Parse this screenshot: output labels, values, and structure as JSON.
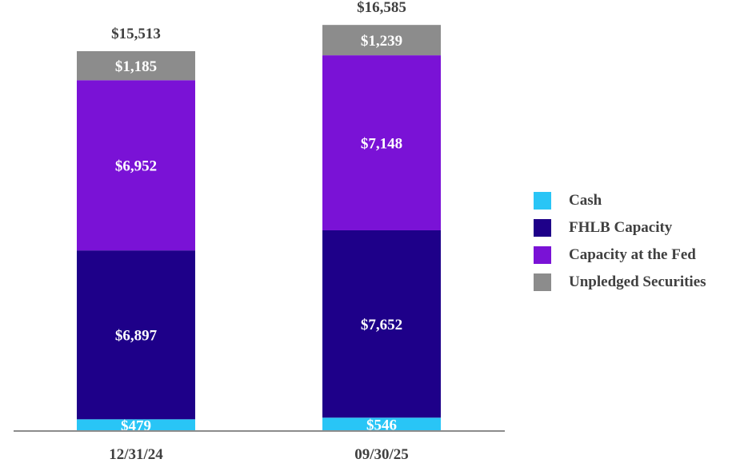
{
  "chart_data": {
    "type": "bar",
    "stacked": true,
    "categories": [
      "12/31/24",
      "09/30/25"
    ],
    "series": [
      {
        "name": "Cash",
        "color": "#29c5f6",
        "values": [
          479,
          546
        ],
        "labels": [
          "$479",
          "$546"
        ]
      },
      {
        "name": "FHLB Capacity",
        "color": "#1e0089",
        "values": [
          6897,
          7652
        ],
        "labels": [
          "$6,897",
          "$7,652"
        ]
      },
      {
        "name": "Capacity at the Fed",
        "color": "#7a12d6",
        "values": [
          6952,
          7148
        ],
        "labels": [
          "$6,952",
          "$7,148"
        ]
      },
      {
        "name": "Unpledged Securities",
        "color": "#8c8c8c",
        "values": [
          1185,
          1239
        ],
        "labels": [
          "$1,185",
          "$1,239"
        ]
      }
    ],
    "totals": [
      15513,
      16585
    ],
    "total_labels": [
      "$15,513",
      "$16,585"
    ],
    "legend_position": "right",
    "grid": false,
    "ylim": [
      0,
      17000
    ]
  }
}
